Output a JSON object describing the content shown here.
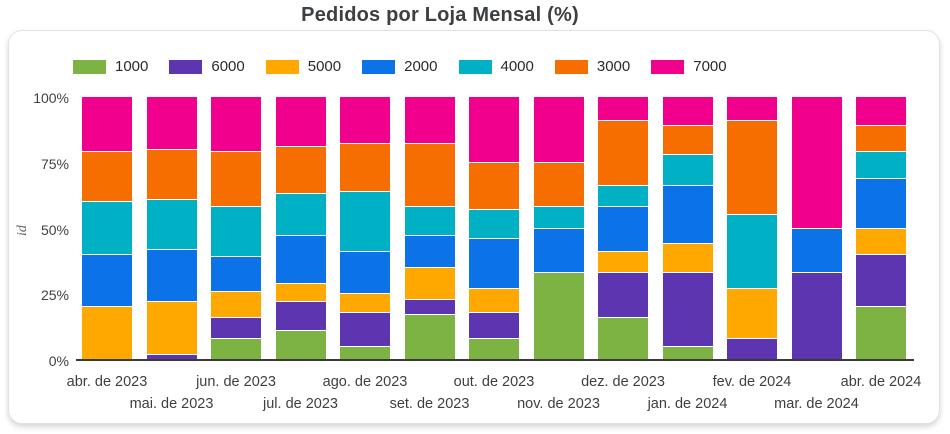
{
  "title": "Pedidos por Loja Mensal (%)",
  "chart_data": {
    "type": "bar",
    "variant": "stacked-100-percent-column",
    "title": "Pedidos por Loja Mensal (%)",
    "ylabel": "id",
    "xlabel": "",
    "ylim": [
      0,
      100
    ],
    "grid": false,
    "legend_position": "top",
    "y_ticks": [
      {
        "label": "100%",
        "value": 100
      },
      {
        "label": "75%",
        "value": 75
      },
      {
        "label": "50%",
        "value": 50
      },
      {
        "label": "25%",
        "value": 25
      },
      {
        "label": "0%",
        "value": 0
      }
    ],
    "categories": [
      "abr. de 2023",
      "mai. de 2023",
      "jun. de 2023",
      "jul. de 2023",
      "ago. de 2023",
      "set. de 2023",
      "out. de 2023",
      "nov. de 2023",
      "dez. de 2023",
      "jan. de 2024",
      "fev. de 2024",
      "mar. de 2024",
      "abr. de 2024"
    ],
    "series": [
      {
        "name": "1000",
        "color": "#7CB342",
        "values": [
          0,
          0,
          8,
          11,
          5,
          17,
          8,
          33,
          16,
          5,
          0,
          0,
          20
        ]
      },
      {
        "name": "6000",
        "color": "#5E35B1",
        "values": [
          0,
          2,
          8,
          11,
          13,
          6,
          10,
          0,
          17,
          28,
          8,
          33,
          20
        ]
      },
      {
        "name": "5000",
        "color": "#FFA800",
        "values": [
          20,
          20,
          10,
          7,
          7,
          12,
          9,
          0,
          8,
          11,
          19,
          0,
          10
        ]
      },
      {
        "name": "2000",
        "color": "#0B72E8",
        "values": [
          20,
          20,
          13,
          18,
          16,
          12,
          19,
          17,
          17,
          22,
          0,
          17,
          19
        ]
      },
      {
        "name": "4000",
        "color": "#00B0C4",
        "values": [
          20,
          19,
          19,
          16,
          23,
          11,
          11,
          8,
          8,
          12,
          28,
          0,
          10
        ]
      },
      {
        "name": "3000",
        "color": "#F66D00",
        "values": [
          19,
          19,
          21,
          18,
          18,
          24,
          18,
          17,
          25,
          11,
          36,
          0,
          10
        ]
      },
      {
        "name": "7000",
        "color": "#F0008C",
        "values": [
          21,
          20,
          21,
          19,
          18,
          18,
          25,
          25,
          9,
          11,
          9,
          50,
          11
        ]
      }
    ]
  }
}
